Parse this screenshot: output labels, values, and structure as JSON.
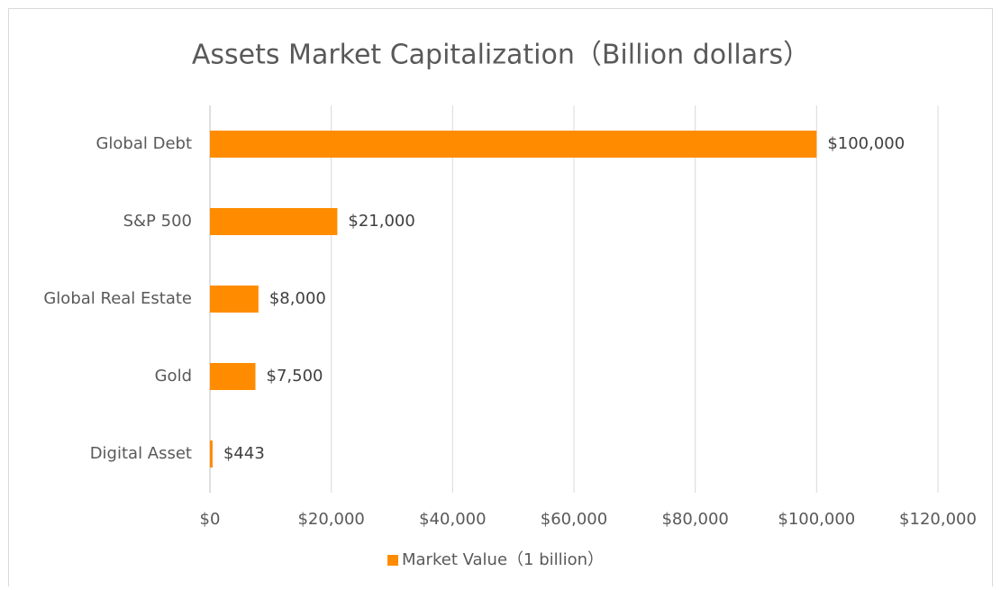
{
  "chart_data": {
    "type": "bar",
    "orientation": "horizontal",
    "title": "Assets Market Capitalization（Billion dollars）",
    "categories": [
      "Global Debt",
      "S&P 500",
      "Global Real Estate",
      "Gold",
      "Digital Asset"
    ],
    "series": [
      {
        "name": "Market Value（1 billion）",
        "color": "#ff8c00",
        "values": [
          100000,
          21000,
          8000,
          7500,
          443
        ],
        "value_labels": [
          "$100,000",
          "$21,000",
          "$8,000",
          "$7,500",
          "$443"
        ]
      }
    ],
    "xlim": [
      0,
      120000
    ],
    "xticks": [
      {
        "value": 0,
        "label": "$0"
      },
      {
        "value": 20000,
        "label": "$20,000"
      },
      {
        "value": 40000,
        "label": "$40,000"
      },
      {
        "value": 60000,
        "label": "$60,000"
      },
      {
        "value": 80000,
        "label": "$80,000"
      },
      {
        "value": 100000,
        "label": "$100,000"
      },
      {
        "value": 120000,
        "label": "$120,000"
      }
    ],
    "grid": true,
    "legend": "bottom"
  }
}
